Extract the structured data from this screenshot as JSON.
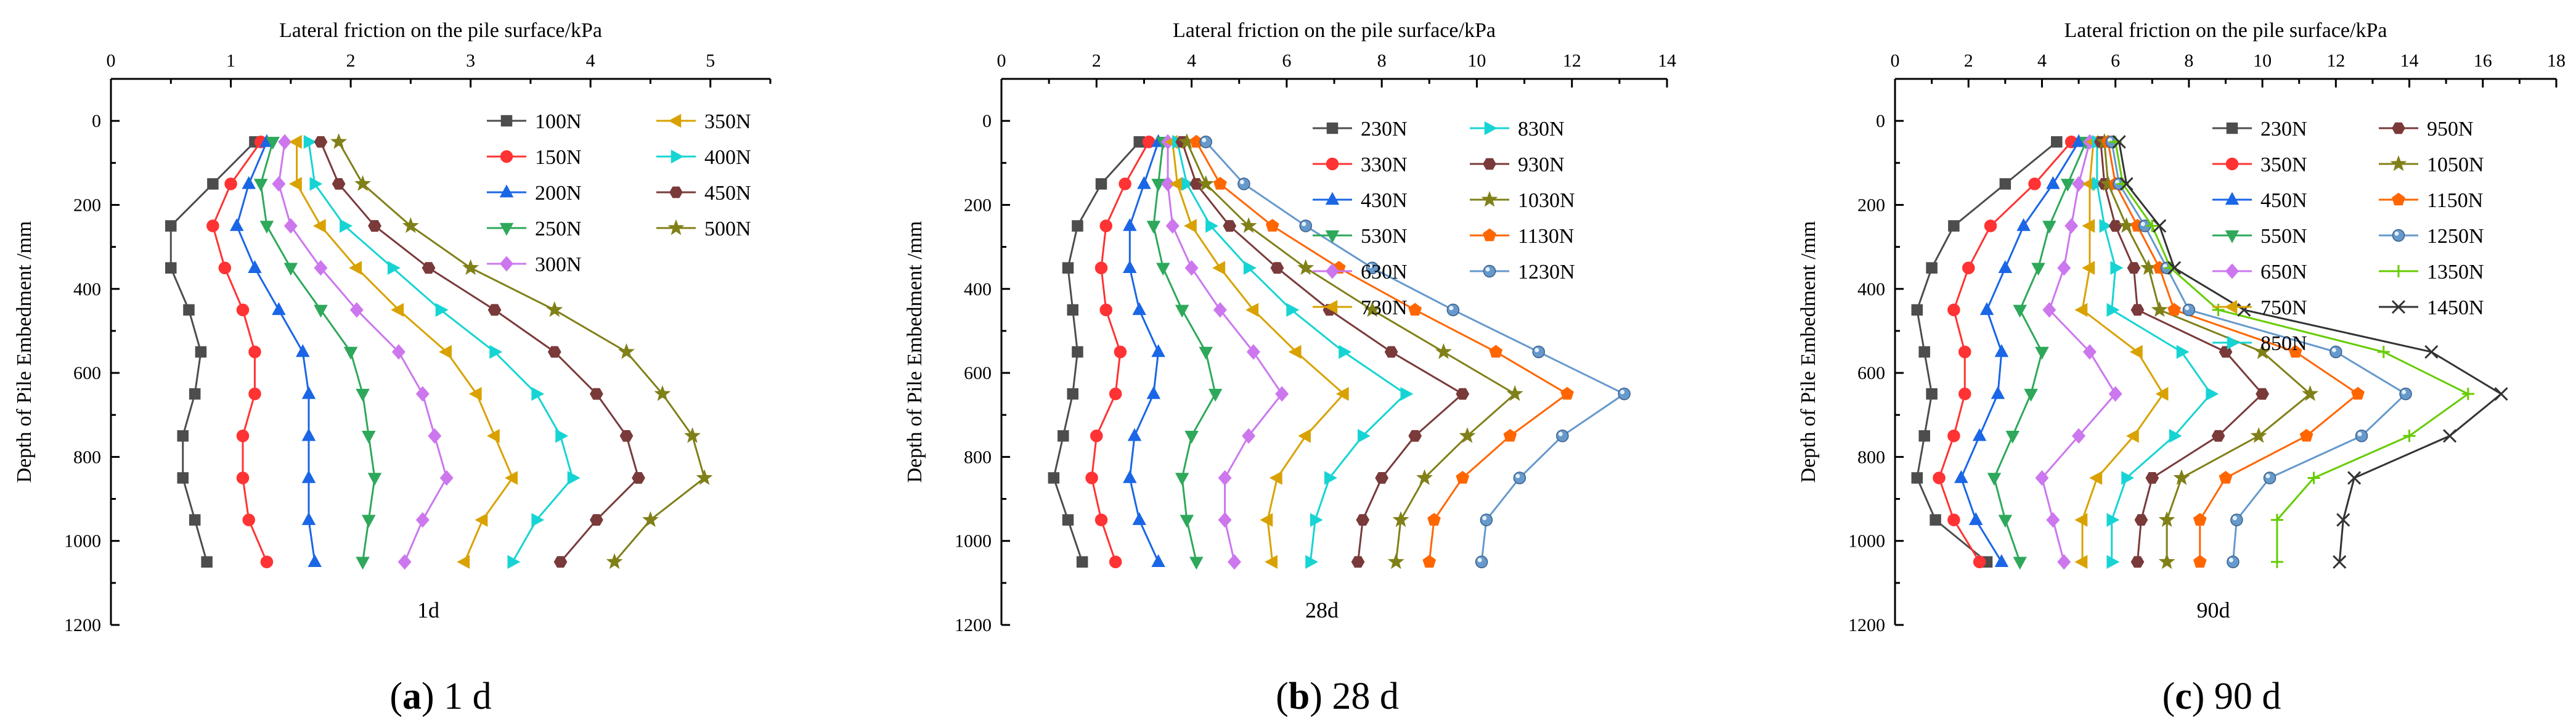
{
  "chart_data": [
    {
      "type": "line",
      "panel_id": "a",
      "caption_letter": "a",
      "caption_text": " 1 d",
      "age_label": "1d",
      "xlabel": "Lateral friction on the pile surface/kPa",
      "ylabel": "Depth of Pile Embedment /mm",
      "xlim": [
        0,
        5.5
      ],
      "ylim": [
        -100,
        1200
      ],
      "xticks": [
        0,
        1,
        2,
        3,
        4,
        5
      ],
      "yticks": [
        0,
        200,
        400,
        600,
        800,
        1000,
        1200
      ],
      "depths": [
        50,
        150,
        250,
        350,
        450,
        550,
        650,
        750,
        850,
        950,
        1050
      ],
      "legend_columns": 2,
      "series": [
        {
          "name": "100N",
          "color": "#4d4d4d",
          "marker": "square",
          "values": [
            1.2,
            0.85,
            0.5,
            0.5,
            0.65,
            0.75,
            0.7,
            0.6,
            0.6,
            0.7,
            0.8
          ]
        },
        {
          "name": "150N",
          "color": "#ff3333",
          "marker": "circle",
          "values": [
            1.25,
            1.0,
            0.85,
            0.95,
            1.1,
            1.2,
            1.2,
            1.1,
            1.1,
            1.15,
            1.3
          ]
        },
        {
          "name": "200N",
          "color": "#1a66e6",
          "marker": "triangle-up",
          "values": [
            1.3,
            1.15,
            1.05,
            1.2,
            1.4,
            1.6,
            1.65,
            1.65,
            1.65,
            1.65,
            1.7
          ]
        },
        {
          "name": "250N",
          "color": "#2ea85a",
          "marker": "triangle-down",
          "values": [
            1.35,
            1.25,
            1.3,
            1.5,
            1.75,
            2.0,
            2.1,
            2.15,
            2.2,
            2.15,
            2.1
          ]
        },
        {
          "name": "300N",
          "color": "#cc77ee",
          "marker": "diamond",
          "values": [
            1.45,
            1.4,
            1.5,
            1.75,
            2.05,
            2.4,
            2.6,
            2.7,
            2.8,
            2.6,
            2.45
          ]
        },
        {
          "name": "350N",
          "color": "#d9a200",
          "marker": "triangle-left",
          "values": [
            1.55,
            1.55,
            1.75,
            2.05,
            2.4,
            2.8,
            3.05,
            3.2,
            3.35,
            3.1,
            2.95
          ]
        },
        {
          "name": "400N",
          "color": "#17d4d4",
          "marker": "triangle-right",
          "values": [
            1.65,
            1.7,
            1.95,
            2.35,
            2.75,
            3.2,
            3.55,
            3.75,
            3.85,
            3.55,
            3.35
          ]
        },
        {
          "name": "450N",
          "color": "#7a3a3a",
          "marker": "hexagon",
          "values": [
            1.75,
            1.9,
            2.2,
            2.65,
            3.2,
            3.7,
            4.05,
            4.3,
            4.4,
            4.05,
            3.75
          ]
        },
        {
          "name": "500N",
          "color": "#808019",
          "marker": "star",
          "values": [
            1.9,
            2.1,
            2.5,
            3.0,
            3.7,
            4.3,
            4.6,
            4.85,
            4.95,
            4.5,
            4.2
          ]
        }
      ]
    },
    {
      "type": "line",
      "panel_id": "b",
      "caption_letter": "b",
      "caption_text": " 28 d",
      "age_label": "28d",
      "xlabel": "Lateral friction on the pile surface/kPa",
      "ylabel": "Depth of Pile Embedment /mm",
      "xlim": [
        0,
        14
      ],
      "ylim": [
        -100,
        1200
      ],
      "xticks": [
        0,
        2,
        4,
        6,
        8,
        10,
        12,
        14
      ],
      "yticks": [
        0,
        200,
        400,
        600,
        800,
        1000,
        1200
      ],
      "depths": [
        50,
        150,
        250,
        350,
        450,
        550,
        650,
        750,
        850,
        950,
        1050
      ],
      "legend_columns": 2,
      "series": [
        {
          "name": "230N",
          "color": "#4d4d4d",
          "marker": "square",
          "values": [
            2.9,
            2.1,
            1.6,
            1.4,
            1.5,
            1.6,
            1.5,
            1.3,
            1.1,
            1.4,
            1.7
          ]
        },
        {
          "name": "330N",
          "color": "#ff3333",
          "marker": "circle",
          "values": [
            3.1,
            2.6,
            2.2,
            2.1,
            2.2,
            2.5,
            2.4,
            2.0,
            1.9,
            2.1,
            2.4
          ]
        },
        {
          "name": "430N",
          "color": "#1a66e6",
          "marker": "triangle-up",
          "values": [
            3.3,
            3.0,
            2.7,
            2.7,
            2.9,
            3.3,
            3.2,
            2.8,
            2.7,
            2.9,
            3.3
          ]
        },
        {
          "name": "530N",
          "color": "#2ea85a",
          "marker": "triangle-down",
          "values": [
            3.4,
            3.3,
            3.2,
            3.4,
            3.8,
            4.3,
            4.5,
            4.0,
            3.8,
            3.9,
            4.1
          ]
        },
        {
          "name": "630N",
          "color": "#cc77ee",
          "marker": "diamond",
          "values": [
            3.5,
            3.5,
            3.6,
            4.0,
            4.6,
            5.3,
            5.9,
            5.2,
            4.7,
            4.7,
            4.9
          ]
        },
        {
          "name": "730N",
          "color": "#d9a200",
          "marker": "triangle-left",
          "values": [
            3.6,
            3.7,
            4.0,
            4.6,
            5.3,
            6.2,
            7.2,
            6.4,
            5.8,
            5.6,
            5.7
          ]
        },
        {
          "name": "830N",
          "color": "#17d4d4",
          "marker": "triangle-right",
          "values": [
            3.7,
            3.9,
            4.4,
            5.2,
            6.1,
            7.2,
            8.5,
            7.6,
            6.9,
            6.6,
            6.5
          ]
        },
        {
          "name": "930N",
          "color": "#7a3a3a",
          "marker": "hexagon",
          "values": [
            3.8,
            4.1,
            4.8,
            5.8,
            6.9,
            8.2,
            9.7,
            8.7,
            8.0,
            7.6,
            7.5
          ]
        },
        {
          "name": "1030N",
          "color": "#808019",
          "marker": "star",
          "values": [
            3.9,
            4.3,
            5.2,
            6.4,
            7.8,
            9.3,
            10.8,
            9.8,
            8.9,
            8.4,
            8.3
          ]
        },
        {
          "name": "1130N",
          "color": "#ff6600",
          "marker": "pentagon",
          "values": [
            4.1,
            4.6,
            5.7,
            7.1,
            8.7,
            10.4,
            11.9,
            10.7,
            9.7,
            9.1,
            9.0
          ]
        },
        {
          "name": "1230N",
          "color": "#6699cc",
          "marker": "sphere",
          "values": [
            4.3,
            5.1,
            6.4,
            7.8,
            9.5,
            11.3,
            13.1,
            11.8,
            10.9,
            10.2,
            10.1
          ]
        }
      ]
    },
    {
      "type": "line",
      "panel_id": "c",
      "caption_letter": "c",
      "caption_text": " 90 d",
      "age_label": "90d",
      "xlabel": "Lateral friction on the pile surface/kPa",
      "ylabel": "Depth of Pile Embedment /mm",
      "xlim": [
        0,
        18
      ],
      "ylim": [
        -100,
        1200
      ],
      "xticks": [
        0,
        2,
        4,
        6,
        8,
        10,
        12,
        14,
        16,
        18
      ],
      "yticks": [
        0,
        200,
        400,
        600,
        800,
        1000,
        1200
      ],
      "depths": [
        50,
        150,
        250,
        350,
        450,
        550,
        650,
        750,
        850,
        950,
        1050
      ],
      "legend_columns": 2,
      "series": [
        {
          "name": "230N",
          "color": "#4d4d4d",
          "marker": "square",
          "values": [
            4.4,
            3.0,
            1.6,
            1.0,
            0.6,
            0.8,
            1.0,
            0.8,
            0.6,
            1.1,
            2.5
          ]
        },
        {
          "name": "350N",
          "color": "#ff3333",
          "marker": "circle",
          "values": [
            4.8,
            3.8,
            2.6,
            2.0,
            1.6,
            1.9,
            1.9,
            1.6,
            1.2,
            1.6,
            2.3
          ]
        },
        {
          "name": "450N",
          "color": "#1a66e6",
          "marker": "triangle-up",
          "values": [
            5.0,
            4.3,
            3.5,
            3.0,
            2.5,
            2.9,
            2.8,
            2.3,
            1.8,
            2.2,
            2.9
          ]
        },
        {
          "name": "550N",
          "color": "#2ea85a",
          "marker": "triangle-down",
          "values": [
            5.2,
            4.7,
            4.2,
            3.9,
            3.4,
            4.0,
            3.7,
            3.2,
            2.7,
            3.0,
            3.4
          ]
        },
        {
          "name": "650N",
          "color": "#cc77ee",
          "marker": "diamond",
          "values": [
            5.3,
            5.0,
            4.8,
            4.6,
            4.2,
            5.3,
            6.0,
            5.0,
            4.0,
            4.3,
            4.6
          ]
        },
        {
          "name": "750N",
          "color": "#d9a200",
          "marker": "triangle-left",
          "values": [
            5.4,
            5.3,
            5.3,
            5.3,
            5.1,
            6.6,
            7.3,
            6.5,
            5.5,
            5.1,
            5.1
          ]
        },
        {
          "name": "850N",
          "color": "#17d4d4",
          "marker": "triangle-right",
          "values": [
            5.5,
            5.5,
            5.7,
            6.0,
            5.9,
            7.8,
            8.6,
            7.6,
            6.3,
            5.9,
            5.9
          ]
        },
        {
          "name": "950N",
          "color": "#7a3a3a",
          "marker": "hexagon",
          "values": [
            5.6,
            5.7,
            6.0,
            6.5,
            6.6,
            9.0,
            10.0,
            8.8,
            7.0,
            6.7,
            6.6
          ]
        },
        {
          "name": "1050N",
          "color": "#808019",
          "marker": "star",
          "values": [
            5.7,
            5.8,
            6.3,
            6.9,
            7.2,
            10.0,
            11.3,
            9.9,
            7.8,
            7.4,
            7.4
          ]
        },
        {
          "name": "1150N",
          "color": "#ff6600",
          "marker": "pentagon",
          "values": [
            5.8,
            6.0,
            6.6,
            7.2,
            7.6,
            10.9,
            12.6,
            11.2,
            9.0,
            8.3,
            8.3
          ]
        },
        {
          "name": "1250N",
          "color": "#6699cc",
          "marker": "sphere",
          "values": [
            5.9,
            6.1,
            6.8,
            7.4,
            8.0,
            12.0,
            13.9,
            12.7,
            10.2,
            9.3,
            9.2
          ]
        },
        {
          "name": "1350N",
          "color": "#66cc00",
          "marker": "plus",
          "values": [
            6.0,
            6.2,
            7.0,
            7.5,
            8.8,
            13.3,
            15.6,
            14.0,
            11.4,
            10.4,
            10.4
          ]
        },
        {
          "name": "1450N",
          "color": "#333333",
          "marker": "x",
          "values": [
            6.1,
            6.3,
            7.2,
            7.6,
            9.5,
            14.6,
            16.5,
            15.1,
            12.5,
            12.2,
            12.1
          ]
        }
      ]
    }
  ]
}
